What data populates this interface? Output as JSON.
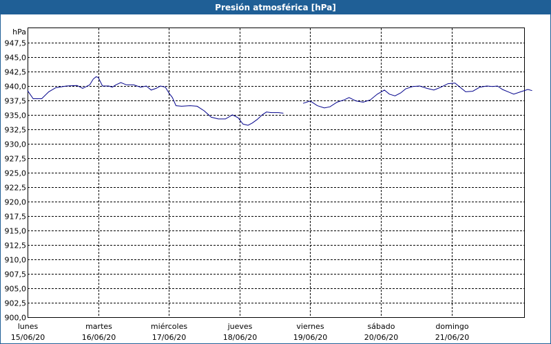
{
  "window": {
    "title": "Presión atmosférica [hPa]"
  },
  "chart_data": {
    "type": "line",
    "ylabel": "hPa",
    "ylim": [
      900.0,
      950.0
    ],
    "y_ticks": [
      "900,0",
      "902,5",
      "905,0",
      "907,5",
      "910,0",
      "912,5",
      "915,0",
      "917,5",
      "920,0",
      "922,5",
      "925,0",
      "927,5",
      "930,0",
      "932,5",
      "935,0",
      "937,5",
      "940,0",
      "942,5",
      "945,0",
      "947,5"
    ],
    "x_ticks": [
      {
        "day": "lunes",
        "date": "15/06/20"
      },
      {
        "day": "martes",
        "date": "16/06/20"
      },
      {
        "day": "miércoles",
        "date": "17/06/20"
      },
      {
        "day": "jueves",
        "date": "18/06/20"
      },
      {
        "day": "viernes",
        "date": "19/06/20"
      },
      {
        "day": "sábado",
        "date": "20/06/20"
      },
      {
        "day": "domingo",
        "date": "21/06/20"
      }
    ],
    "grid": true,
    "series": [
      {
        "segments": [
          [
            [
              0.0,
              939.2
            ],
            [
              0.08,
              937.8
            ],
            [
              0.2,
              937.8
            ],
            [
              0.3,
              939.0
            ],
            [
              0.4,
              939.7
            ],
            [
              0.55,
              940.0
            ],
            [
              0.7,
              940.1
            ],
            [
              0.78,
              939.6
            ],
            [
              0.88,
              940.2
            ],
            [
              0.93,
              941.2
            ],
            [
              0.97,
              941.6
            ],
            [
              1.0,
              941.5
            ],
            [
              1.06,
              940.0
            ],
            [
              1.15,
              940.0
            ],
            [
              1.2,
              939.8
            ],
            [
              1.25,
              940.2
            ],
            [
              1.32,
              940.6
            ],
            [
              1.4,
              940.2
            ],
            [
              1.5,
              940.2
            ],
            [
              1.6,
              939.8
            ],
            [
              1.68,
              940.0
            ],
            [
              1.75,
              939.3
            ],
            [
              1.82,
              939.6
            ],
            [
              1.88,
              940.0
            ],
            [
              1.95,
              939.8
            ],
            [
              2.0,
              938.8
            ],
            [
              2.05,
              938.0
            ],
            [
              2.1,
              936.6
            ],
            [
              2.18,
              936.5
            ],
            [
              2.3,
              936.6
            ],
            [
              2.4,
              936.5
            ],
            [
              2.5,
              935.7
            ],
            [
              2.6,
              934.6
            ],
            [
              2.7,
              934.3
            ],
            [
              2.8,
              934.3
            ],
            [
              2.9,
              935.0
            ],
            [
              2.98,
              934.5
            ],
            [
              3.05,
              933.4
            ],
            [
              3.12,
              933.2
            ],
            [
              3.18,
              933.6
            ],
            [
              3.25,
              934.2
            ],
            [
              3.32,
              935.0
            ],
            [
              3.38,
              935.5
            ],
            [
              3.45,
              935.4
            ],
            [
              3.55,
              935.4
            ],
            [
              3.62,
              935.3
            ]
          ],
          [
            [
              3.9,
              937.0
            ],
            [
              4.0,
              937.4
            ],
            [
              4.1,
              936.6
            ],
            [
              4.2,
              936.2
            ],
            [
              4.28,
              936.4
            ],
            [
              4.38,
              937.2
            ],
            [
              4.48,
              937.6
            ],
            [
              4.55,
              938.0
            ],
            [
              4.65,
              937.4
            ],
            [
              4.75,
              937.2
            ],
            [
              4.85,
              937.6
            ],
            [
              4.95,
              938.6
            ],
            [
              5.05,
              939.3
            ],
            [
              5.12,
              938.6
            ],
            [
              5.2,
              938.3
            ],
            [
              5.28,
              938.8
            ],
            [
              5.35,
              939.5
            ],
            [
              5.45,
              939.9
            ],
            [
              5.55,
              940.0
            ],
            [
              5.65,
              939.6
            ],
            [
              5.75,
              939.3
            ],
            [
              5.85,
              939.8
            ],
            [
              5.95,
              940.4
            ],
            [
              6.05,
              940.5
            ],
            [
              6.12,
              939.8
            ],
            [
              6.2,
              939.0
            ],
            [
              6.3,
              939.1
            ],
            [
              6.4,
              939.8
            ],
            [
              6.5,
              940.0
            ],
            [
              6.58,
              939.9
            ],
            [
              6.65,
              940.0
            ],
            [
              6.72,
              939.4
            ],
            [
              6.8,
              939.0
            ],
            [
              6.88,
              938.6
            ],
            [
              6.98,
              939.0
            ],
            [
              7.08,
              939.4
            ],
            [
              7.14,
              939.2
            ]
          ]
        ]
      }
    ]
  }
}
